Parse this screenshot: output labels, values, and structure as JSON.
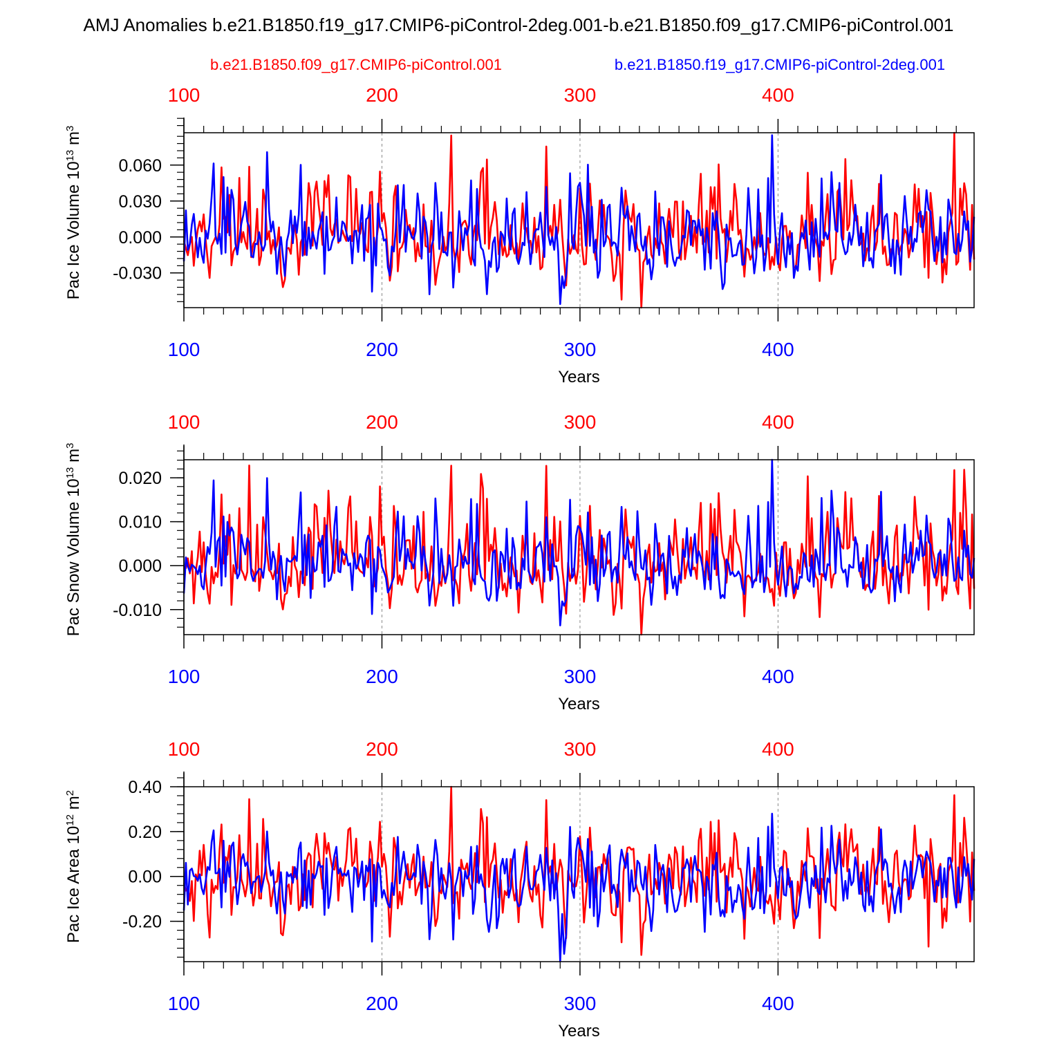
{
  "title": "AMJ Anomalies b.e21.B1850.f19_g17.CMIP6-piControl-2deg.001-b.e21.B1850.f09_g17.CMIP6-piControl.001",
  "colors": {
    "run_f09": "#ff0000",
    "run_f19": "#0000ff",
    "axes": "#000000"
  },
  "legend": {
    "f09": "b.e21.B1850.f09_g17.CMIP6-piControl.001",
    "f19": "b.e21.B1850.f19_g17.CMIP6-piControl-2deg.001"
  },
  "chart_data": [
    {
      "type": "line",
      "title": "Pac Ice Volume",
      "ylabel_main": "Pac Ice Volume 10",
      "ylabel_exp": "13",
      "ylabel_unit": " m",
      "ylabel_unit_exp": "3",
      "xlabel": "Years",
      "xlim": [
        100,
        499
      ],
      "ylim": [
        -0.059,
        0.087
      ],
      "yticks": [
        -0.03,
        0,
        0.03,
        0.06
      ],
      "ytick_labels": [
        "-0.030",
        "0.000",
        "0.030",
        "0.060"
      ],
      "xticks": [
        100,
        200,
        300,
        400
      ],
      "xtick_labels": [
        "100",
        "200",
        "300",
        "400"
      ],
      "grid": "dashed vertical at century marks",
      "series": [
        {
          "name": "b.e21.B1850.f09_g17.CMIP6-piControl.001",
          "color": "red",
          "x_start": 100,
          "x_end": 499,
          "n": 400,
          "std": 0.022,
          "peak_max": 0.087,
          "trough_min": -0.059
        },
        {
          "name": "b.e21.B1850.f19_g17.CMIP6-piControl-2deg.001",
          "color": "blue",
          "x_start": 100,
          "x_end": 499,
          "n": 400,
          "std": 0.019,
          "peak_max": 0.085,
          "trough_min": -0.056
        }
      ]
    },
    {
      "type": "line",
      "title": "Pac Snow Volume",
      "ylabel_main": "Pac Snow Volume 10",
      "ylabel_exp": "13",
      "ylabel_unit": " m",
      "ylabel_unit_exp": "3",
      "xlabel": "Years",
      "xlim": [
        100,
        499
      ],
      "ylim": [
        -0.0157,
        0.0241
      ],
      "yticks": [
        -0.01,
        0,
        0.01,
        0.02
      ],
      "ytick_labels": [
        "-0.010",
        "0.000",
        "0.010",
        "0.020"
      ],
      "xticks": [
        100,
        200,
        300,
        400
      ],
      "xtick_labels": [
        "100",
        "200",
        "300",
        "400"
      ],
      "grid": "dashed vertical at century marks",
      "series": [
        {
          "name": "b.e21.B1850.f09_g17.CMIP6-piControl.001",
          "color": "red",
          "x_start": 100,
          "x_end": 499,
          "n": 400,
          "std": 0.0065,
          "peak_max": 0.0228,
          "trough_min": -0.0157
        },
        {
          "name": "b.e21.B1850.f19_g17.CMIP6-piControl-2deg.001",
          "color": "blue",
          "x_start": 100,
          "x_end": 499,
          "n": 400,
          "std": 0.0055,
          "peak_max": 0.0241,
          "trough_min": -0.0136
        }
      ]
    },
    {
      "type": "line",
      "title": "Pac Ice Area",
      "ylabel_main": "Pac Ice Area 10",
      "ylabel_exp": "12",
      "ylabel_unit": " m",
      "ylabel_unit_exp": "2",
      "xlabel": "Years",
      "xlim": [
        100,
        499
      ],
      "ylim": [
        -0.38,
        0.4
      ],
      "yticks": [
        -0.2,
        0,
        0.2,
        0.4
      ],
      "ytick_labels": [
        "-0.20",
        "0.00",
        "0.20",
        "0.40"
      ],
      "xticks": [
        100,
        200,
        300,
        400
      ],
      "xtick_labels": [
        "100",
        "200",
        "300",
        "400"
      ],
      "grid": "dashed vertical at century marks",
      "series": [
        {
          "name": "b.e21.B1850.f09_g17.CMIP6-piControl.001",
          "color": "red",
          "x_start": 100,
          "x_end": 499,
          "n": 400,
          "std": 0.12,
          "peak_max": 0.4,
          "trough_min": -0.35
        },
        {
          "name": "b.e21.B1850.f19_g17.CMIP6-piControl-2deg.001",
          "color": "blue",
          "x_start": 100,
          "x_end": 499,
          "n": 400,
          "std": 0.11,
          "peak_max": 0.28,
          "trough_min": -0.38
        }
      ]
    }
  ]
}
